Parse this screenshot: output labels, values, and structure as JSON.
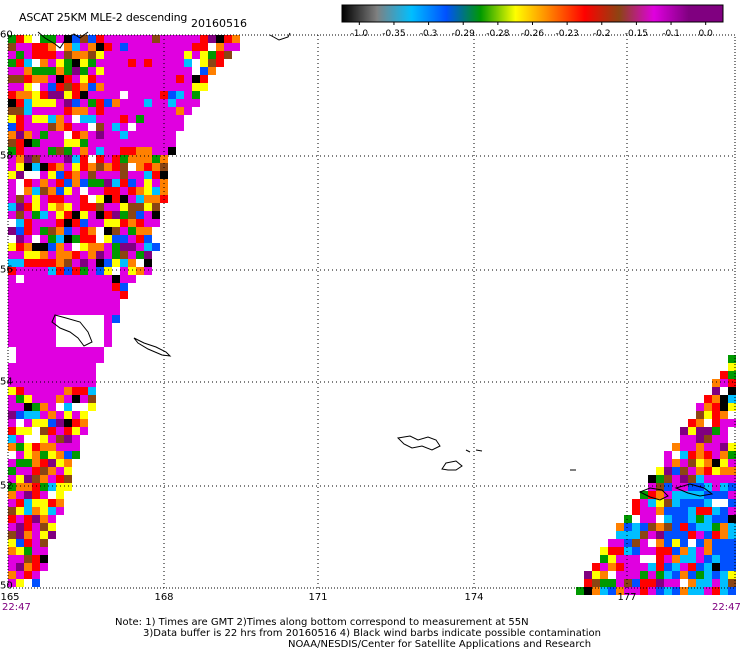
{
  "header": {
    "title": "ASCAT 25KM MLE-2 descending",
    "date": "20160516"
  },
  "colorbar": {
    "colors": [
      "#000000",
      "#808080",
      "#00bfff",
      "#0050ff",
      "#009900",
      "#ffff00",
      "#ff8000",
      "#ff0000",
      "#8b4513",
      "#e000e0",
      "#800080"
    ],
    "tick_labels": [
      "-1.0",
      "-0.35",
      "-0.3",
      "-0.29",
      "-0.28",
      "-0.26",
      "-0.23",
      "-0.2",
      "-0.15",
      "-0.1",
      "0.0"
    ]
  },
  "map": {
    "lon_labels": [
      "165",
      "168",
      "171",
      "174",
      "177"
    ],
    "lat_labels": [
      "60",
      "58",
      "56",
      "54",
      "52",
      "50"
    ],
    "time_left": "22:47",
    "time_right": "22:47"
  },
  "notes": {
    "line1": "Note: 1) Times are GMT 2)Times along bottom correspond to measurement at 55N",
    "line2": "3)Data buffer is 22 hrs from 20160516 4) Black wind barbs indicate possible contamination",
    "line3": "NOAA/NESDIS/Center for Satellite Applications and Research"
  }
}
